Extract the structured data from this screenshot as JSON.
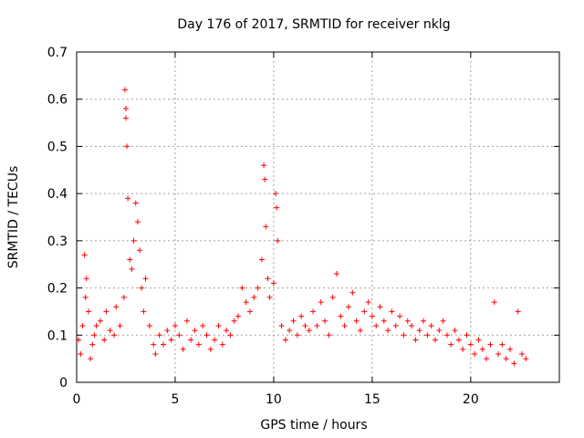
{
  "chart_data": {
    "type": "scatter",
    "title": "Day 176 of 2017, SRMTID for receiver nklg",
    "xlabel": "GPS time / hours",
    "ylabel": "SRMTID / TECUs",
    "xlim": [
      0,
      24.5
    ],
    "ylim": [
      0,
      0.7
    ],
    "xticks": [
      0,
      5,
      10,
      15,
      20
    ],
    "xtick_labels": [
      "0",
      "5",
      "10",
      "15",
      "20"
    ],
    "yticks": [
      0,
      0.1,
      0.2,
      0.3,
      0.4,
      0.5,
      0.6,
      0.7
    ],
    "ytick_labels": [
      "0",
      "0.1",
      "0.2",
      "0.3",
      "0.4",
      "0.5",
      "0.6",
      "0.7"
    ],
    "grid": true,
    "marker": "plus",
    "color": "#ff0000",
    "series": [
      {
        "name": "SRMTID",
        "points": [
          [
            0.1,
            0.09
          ],
          [
            0.2,
            0.06
          ],
          [
            0.3,
            0.12
          ],
          [
            0.4,
            0.27
          ],
          [
            0.45,
            0.18
          ],
          [
            0.5,
            0.22
          ],
          [
            0.6,
            0.15
          ],
          [
            0.7,
            0.05
          ],
          [
            0.8,
            0.08
          ],
          [
            0.9,
            0.1
          ],
          [
            1.0,
            0.12
          ],
          [
            1.2,
            0.13
          ],
          [
            1.4,
            0.09
          ],
          [
            1.5,
            0.15
          ],
          [
            1.7,
            0.11
          ],
          [
            1.9,
            0.1
          ],
          [
            2.0,
            0.16
          ],
          [
            2.2,
            0.12
          ],
          [
            2.4,
            0.18
          ],
          [
            2.45,
            0.62
          ],
          [
            2.5,
            0.58
          ],
          [
            2.5,
            0.56
          ],
          [
            2.55,
            0.5
          ],
          [
            2.6,
            0.39
          ],
          [
            2.7,
            0.26
          ],
          [
            2.8,
            0.24
          ],
          [
            2.9,
            0.3
          ],
          [
            3.0,
            0.38
          ],
          [
            3.1,
            0.34
          ],
          [
            3.2,
            0.28
          ],
          [
            3.3,
            0.2
          ],
          [
            3.4,
            0.15
          ],
          [
            3.5,
            0.22
          ],
          [
            3.7,
            0.12
          ],
          [
            3.9,
            0.08
          ],
          [
            4.0,
            0.06
          ],
          [
            4.2,
            0.1
          ],
          [
            4.4,
            0.08
          ],
          [
            4.6,
            0.11
          ],
          [
            4.8,
            0.09
          ],
          [
            5.0,
            0.12
          ],
          [
            5.2,
            0.1
          ],
          [
            5.4,
            0.07
          ],
          [
            5.6,
            0.13
          ],
          [
            5.8,
            0.09
          ],
          [
            6.0,
            0.11
          ],
          [
            6.2,
            0.08
          ],
          [
            6.4,
            0.12
          ],
          [
            6.6,
            0.1
          ],
          [
            6.8,
            0.07
          ],
          [
            7.0,
            0.09
          ],
          [
            7.2,
            0.12
          ],
          [
            7.4,
            0.08
          ],
          [
            7.6,
            0.11
          ],
          [
            7.8,
            0.1
          ],
          [
            8.0,
            0.13
          ],
          [
            8.2,
            0.14
          ],
          [
            8.4,
            0.2
          ],
          [
            8.6,
            0.17
          ],
          [
            8.8,
            0.15
          ],
          [
            9.0,
            0.18
          ],
          [
            9.2,
            0.2
          ],
          [
            9.4,
            0.26
          ],
          [
            9.5,
            0.46
          ],
          [
            9.55,
            0.43
          ],
          [
            9.6,
            0.33
          ],
          [
            9.7,
            0.22
          ],
          [
            9.8,
            0.18
          ],
          [
            10.0,
            0.21
          ],
          [
            10.1,
            0.4
          ],
          [
            10.15,
            0.37
          ],
          [
            10.2,
            0.3
          ],
          [
            10.4,
            0.12
          ],
          [
            10.6,
            0.09
          ],
          [
            10.8,
            0.11
          ],
          [
            11.0,
            0.13
          ],
          [
            11.2,
            0.1
          ],
          [
            11.4,
            0.14
          ],
          [
            11.6,
            0.12
          ],
          [
            11.8,
            0.11
          ],
          [
            12.0,
            0.15
          ],
          [
            12.2,
            0.12
          ],
          [
            12.4,
            0.17
          ],
          [
            12.6,
            0.13
          ],
          [
            12.8,
            0.1
          ],
          [
            13.0,
            0.18
          ],
          [
            13.2,
            0.23
          ],
          [
            13.4,
            0.14
          ],
          [
            13.6,
            0.12
          ],
          [
            13.8,
            0.16
          ],
          [
            14.0,
            0.19
          ],
          [
            14.2,
            0.13
          ],
          [
            14.4,
            0.11
          ],
          [
            14.6,
            0.15
          ],
          [
            14.8,
            0.17
          ],
          [
            15.0,
            0.14
          ],
          [
            15.2,
            0.12
          ],
          [
            15.4,
            0.16
          ],
          [
            15.6,
            0.13
          ],
          [
            15.8,
            0.11
          ],
          [
            16.0,
            0.15
          ],
          [
            16.2,
            0.12
          ],
          [
            16.4,
            0.14
          ],
          [
            16.6,
            0.1
          ],
          [
            16.8,
            0.13
          ],
          [
            17.0,
            0.12
          ],
          [
            17.2,
            0.09
          ],
          [
            17.4,
            0.11
          ],
          [
            17.6,
            0.13
          ],
          [
            17.8,
            0.1
          ],
          [
            18.0,
            0.12
          ],
          [
            18.2,
            0.09
          ],
          [
            18.4,
            0.11
          ],
          [
            18.6,
            0.13
          ],
          [
            18.8,
            0.1
          ],
          [
            19.0,
            0.08
          ],
          [
            19.2,
            0.11
          ],
          [
            19.4,
            0.09
          ],
          [
            19.6,
            0.07
          ],
          [
            19.8,
            0.1
          ],
          [
            20.0,
            0.08
          ],
          [
            20.2,
            0.06
          ],
          [
            20.4,
            0.09
          ],
          [
            20.6,
            0.07
          ],
          [
            20.8,
            0.05
          ],
          [
            21.0,
            0.08
          ],
          [
            21.2,
            0.17
          ],
          [
            21.4,
            0.06
          ],
          [
            21.6,
            0.08
          ],
          [
            21.8,
            0.05
          ],
          [
            22.0,
            0.07
          ],
          [
            22.2,
            0.04
          ],
          [
            22.4,
            0.15
          ],
          [
            22.6,
            0.06
          ],
          [
            22.8,
            0.05
          ]
        ]
      }
    ]
  }
}
